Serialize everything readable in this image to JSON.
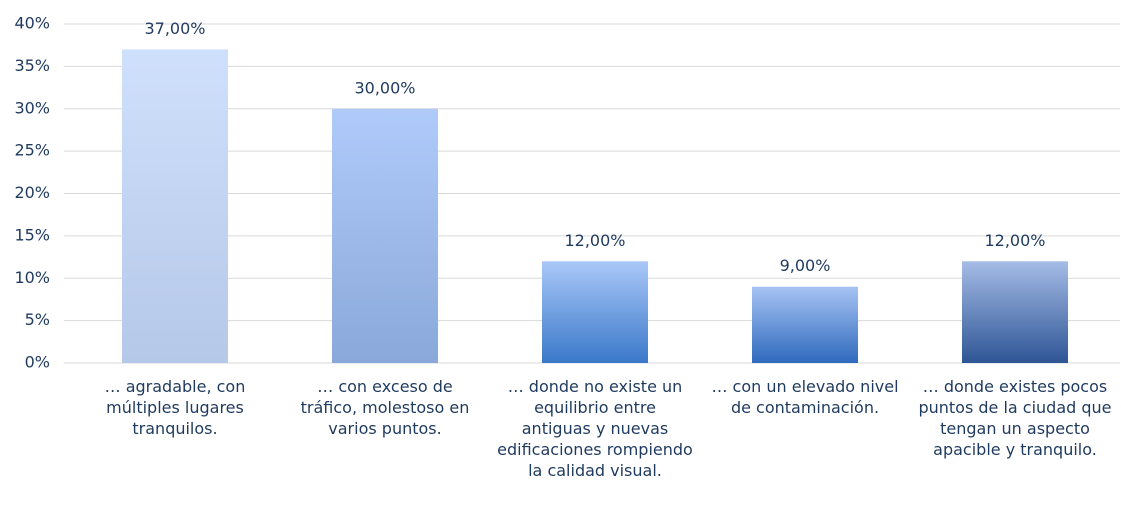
{
  "chart_data": {
    "type": "bar",
    "categories": [
      "… agradable, con múltiples lugares tranquilos.",
      "… con exceso de tráfico, molestoso en varios puntos.",
      "… donde no existe un equilibrio entre antiguas y nuevas edificaciones rompiendo la calidad visual.",
      "… con un elevado nivel de contaminación.",
      "… donde existes pocos puntos de la ciudad que tengan un aspecto apacible y tranquilo."
    ],
    "values": [
      37,
      30,
      12,
      9,
      12
    ],
    "value_labels": [
      "37,00%",
      "30,00%",
      "12,00%",
      "9,00%",
      "12,00%"
    ],
    "colors": [
      [
        "#cfe0fc",
        "#b6c8e8"
      ],
      [
        "#b0cbfa",
        "#8aa8da"
      ],
      [
        "#aac8f8",
        "#3a78c9"
      ],
      [
        "#a7c3f4",
        "#2f6abd"
      ],
      [
        "#a5bce6",
        "#2e5595"
      ]
    ],
    "ylim": [
      0,
      40
    ],
    "yticks": [
      {
        "value": 0,
        "label": "0%"
      },
      {
        "value": 5,
        "label": "5%"
      },
      {
        "value": 10,
        "label": "10%"
      },
      {
        "value": 15,
        "label": "15%"
      },
      {
        "value": 20,
        "label": "20%"
      },
      {
        "value": 25,
        "label": "25%"
      },
      {
        "value": 30,
        "label": "30%"
      },
      {
        "value": 35,
        "label": "35%"
      },
      {
        "value": 40,
        "label": "40%"
      }
    ],
    "grid": true
  }
}
